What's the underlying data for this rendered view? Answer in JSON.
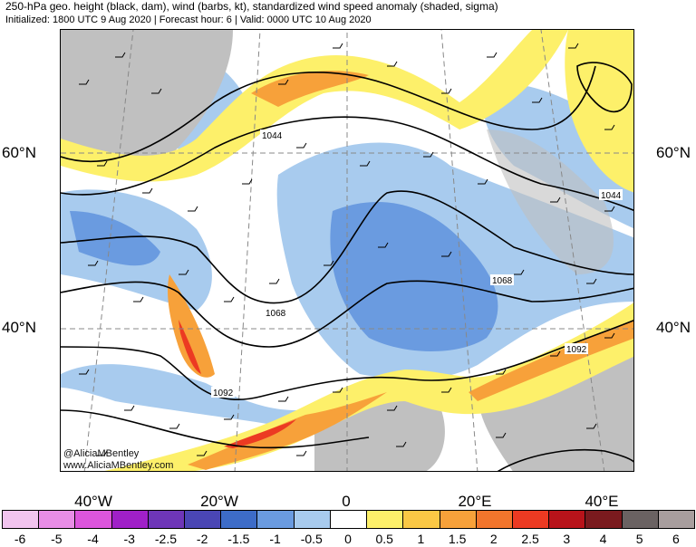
{
  "header": {
    "title": "250-hPa geo. height (black, dam), wind (barbs, kt), standardized wind speed anomaly (shaded, sigma)",
    "subtitle": "Initialized: 1800 UTC 9 Aug 2020 | Forecast hour: 6 | Valid: 0000 UTC 10 Aug 2020"
  },
  "map": {
    "lat_labels": {
      "left_60": "60°N",
      "left_40": "40°N",
      "right_60": "60°N",
      "right_40": "40°N"
    },
    "lon_labels": [
      "40°W",
      "20°W",
      "0",
      "20°E",
      "40°E"
    ],
    "contour_labels": [
      "1044",
      "1044",
      "1068",
      "1068",
      "1092",
      "1092"
    ],
    "credits": [
      "@AliciaMBentley",
      "www.AliciaMBentley.com"
    ]
  },
  "legend": {
    "colors": [
      "#f2c4ef",
      "#e88de6",
      "#dc55dc",
      "#a020c8",
      "#6e36b8",
      "#4a46b4",
      "#3d6cc8",
      "#6a9be0",
      "#a8cbee",
      "#ffffff",
      "#fdf06a",
      "#fbc845",
      "#f7a13a",
      "#f2752c",
      "#ec3a22",
      "#b8131a",
      "#7a1a1e",
      "#6a6262",
      "#a89e9e"
    ],
    "labels": [
      "-6",
      "-5",
      "-4",
      "-3",
      "-2.5",
      "-2",
      "-1.5",
      "-1",
      "-0.5",
      "0",
      "0.5",
      "1",
      "1.5",
      "2",
      "2.5",
      "3",
      "4",
      "5",
      "6"
    ]
  },
  "colors": {
    "land_gray": "#c0c0c0",
    "neg_light": "#a8cbee",
    "neg_mid": "#6a9be0",
    "pos_light": "#fdf06a",
    "pos_mid": "#f7a13a",
    "pos_high": "#ec3a22"
  }
}
